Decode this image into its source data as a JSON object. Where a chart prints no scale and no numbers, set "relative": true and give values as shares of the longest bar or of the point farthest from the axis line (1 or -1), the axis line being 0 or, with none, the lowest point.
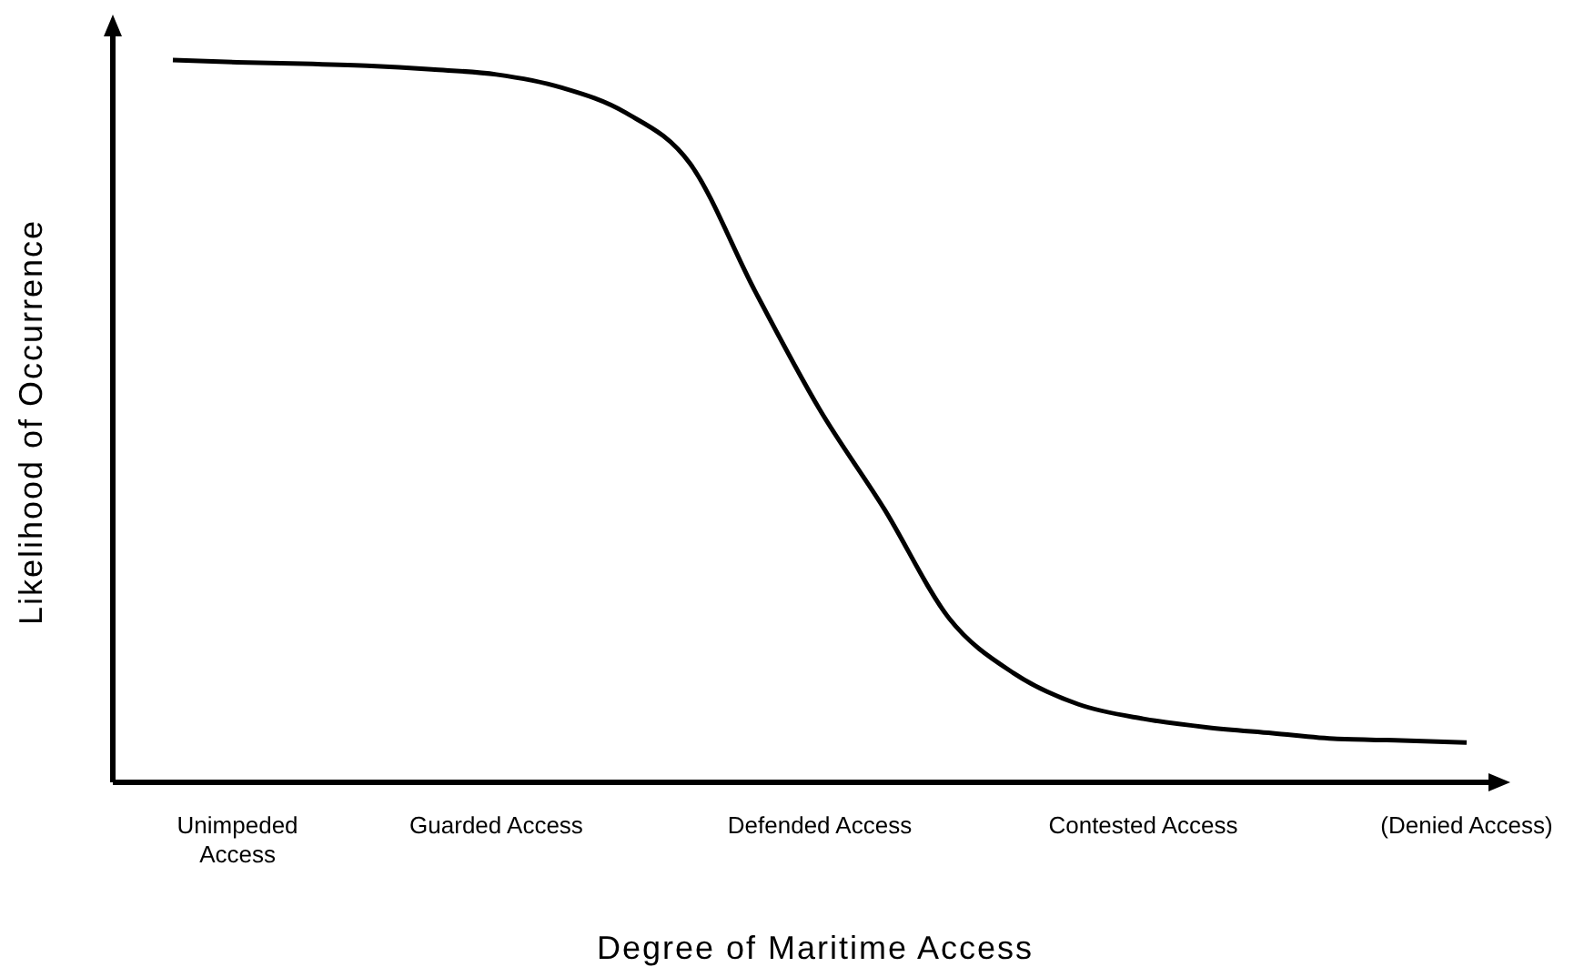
{
  "chart_data": {
    "type": "line",
    "relative": true,
    "xlabel": "Degree of Maritime Access",
    "ylabel": "Likelihood of Occurrence",
    "categories": [
      null,
      "Unimpeded\nAccess",
      null,
      null,
      null,
      "Guarded Access",
      null,
      null,
      null,
      null,
      "Defended Access",
      null,
      null,
      null,
      null,
      "Contested Access",
      null,
      null,
      null,
      null,
      "(Denied Access)"
    ],
    "series": [
      {
        "color": "#000000",
        "values": [
          1.0,
          0.997,
          0.995,
          0.992,
          0.987,
          0.98,
          0.962,
          0.927,
          0.856,
          0.68,
          0.516,
          0.378,
          0.227,
          0.151,
          0.108,
          0.088,
          0.076,
          0.068,
          0.06,
          0.058,
          0.055
        ]
      }
    ],
    "marker": "none",
    "line_style": "solid"
  }
}
